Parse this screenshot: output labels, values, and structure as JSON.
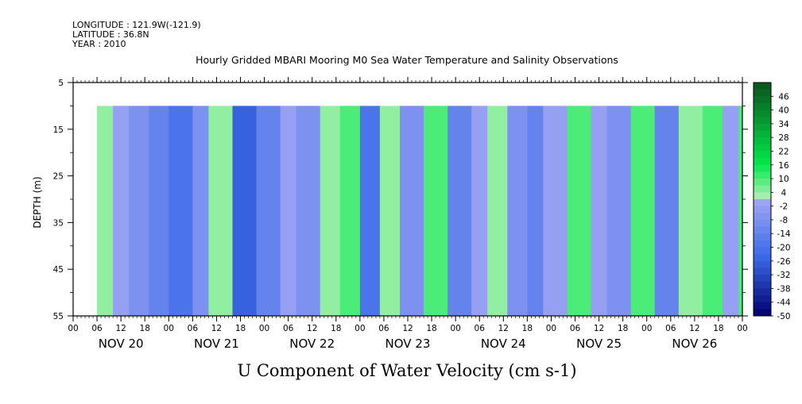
{
  "header": {
    "longitude": "LONGITUDE : 121.9W(-121.9)",
    "latitude": "LATITUDE : 36.8N",
    "year": "YEAR : 2010",
    "title": "Hourly Gridded MBARI Mooring M0 Sea Water Temperature and Salinity Observations"
  },
  "chart_data": {
    "type": "heatmap",
    "title": "Hourly Gridded MBARI Mooring M0 Sea Water Temperature and Salinity Observations",
    "xlabel": "U Component of Water Velocity (cm s-1)",
    "ylabel": "DEPTH (m)",
    "y_ticks": [
      5,
      15,
      25,
      35,
      45,
      55
    ],
    "y_range": [
      5,
      55
    ],
    "y_inverted": true,
    "data_depth_range": [
      10,
      55
    ],
    "x_hour_ticks": [
      "00",
      "06",
      "12",
      "18",
      "00",
      "06",
      "12",
      "18",
      "00",
      "06",
      "12",
      "18",
      "00",
      "06",
      "12",
      "18",
      "00",
      "06",
      "12",
      "18",
      "00",
      "06",
      "12",
      "18",
      "00",
      "06",
      "12",
      "18",
      "00"
    ],
    "x_day_labels": [
      "NOV 20",
      "NOV 21",
      "NOV 22",
      "NOV 23",
      "NOV 24",
      "NOV 25",
      "NOV 26"
    ],
    "time_range_hours": [
      0,
      168
    ],
    "data_start_hour": 6,
    "colorbar_labels": [
      "46",
      "40",
      "34",
      "28",
      "22",
      "16",
      "10",
      "4",
      "-2",
      "-8",
      "-14",
      "-20",
      "-26",
      "-32",
      "-38",
      "-44",
      "-50"
    ],
    "colorbar_range": [
      -50,
      52
    ],
    "column_values_approx": [
      {
        "hour": 6,
        "value": 4
      },
      {
        "hour": 10,
        "value": -2
      },
      {
        "hour": 14,
        "value": -8
      },
      {
        "hour": 19,
        "value": -14
      },
      {
        "hour": 24,
        "value": -20
      },
      {
        "hour": 30,
        "value": -8
      },
      {
        "hour": 34,
        "value": 4
      },
      {
        "hour": 40,
        "value": -26
      },
      {
        "hour": 46,
        "value": -14
      },
      {
        "hour": 52,
        "value": -2
      },
      {
        "hour": 56,
        "value": -8
      },
      {
        "hour": 62,
        "value": 4
      },
      {
        "hour": 67,
        "value": 10
      },
      {
        "hour": 72,
        "value": -20
      },
      {
        "hour": 77,
        "value": 4
      },
      {
        "hour": 82,
        "value": -8
      },
      {
        "hour": 88,
        "value": 10
      },
      {
        "hour": 94,
        "value": -14
      },
      {
        "hour": 100,
        "value": -2
      },
      {
        "hour": 104,
        "value": 4
      },
      {
        "hour": 109,
        "value": -8
      },
      {
        "hour": 114,
        "value": -14
      },
      {
        "hour": 118,
        "value": -2
      },
      {
        "hour": 124,
        "value": 10
      },
      {
        "hour": 130,
        "value": -2
      },
      {
        "hour": 134,
        "value": -8
      },
      {
        "hour": 140,
        "value": 10
      },
      {
        "hour": 146,
        "value": -14
      },
      {
        "hour": 152,
        "value": 4
      },
      {
        "hour": 158,
        "value": 10
      },
      {
        "hour": 163,
        "value": -2
      },
      {
        "hour": 167,
        "value": 10
      }
    ]
  },
  "palette": {
    "green_dark": "#0a5a1e",
    "green_bright": "#00e84a",
    "green_light": "#a8f0b0",
    "blue_light": "#a6aaf5",
    "blue_mid": "#3a6ae8",
    "blue_dark": "#00006e"
  }
}
